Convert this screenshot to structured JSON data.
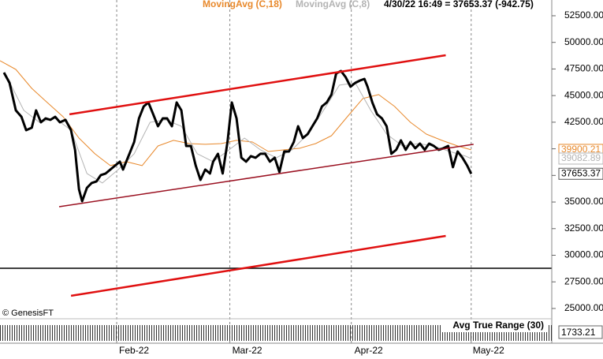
{
  "chart_data": {
    "type": "line",
    "header_quote": "4/30/22 16:49 = 37653.37 (-942.75)",
    "source": "© GenesisFT",
    "xlim": [
      0,
      139
    ],
    "xticks": [
      {
        "value": 29.4,
        "label": "Feb-22"
      },
      {
        "value": 57.9,
        "label": "Mar-22"
      },
      {
        "value": 88.5,
        "label": "Apr-22"
      },
      {
        "value": 118.7,
        "label": "May-22"
      }
    ],
    "ylim": [
      24330,
      53980
    ],
    "yticks": [
      {
        "value": 52500,
        "label": "52500.00"
      },
      {
        "value": 50000,
        "label": "50000.00"
      },
      {
        "value": 47500,
        "label": "47500.00"
      },
      {
        "value": 45000,
        "label": "45000.00"
      },
      {
        "value": 42500,
        "label": "42500.00"
      },
      {
        "value": 40000,
        "label": "40000.00"
      },
      {
        "value": 37500,
        "label": "37500.00"
      },
      {
        "value": 35000,
        "label": "35000.00"
      },
      {
        "value": 32500,
        "label": "32500.00"
      },
      {
        "value": 30000,
        "label": "30000.00"
      },
      {
        "value": 27500,
        "label": "27500.00"
      },
      {
        "value": 25000,
        "label": "25000.00"
      }
    ],
    "grid": true,
    "series": [
      {
        "color": "#000000",
        "width": 3,
        "x": [
          1.0,
          2.4,
          4.0,
          5.4,
          6.6,
          8.0,
          9.1,
          10.3,
          11.5,
          12.7,
          13.9,
          15.1,
          16.5,
          17.9,
          18.9,
          19.9,
          20.7,
          21.9,
          23.1,
          24.3,
          25.4,
          26.6,
          27.8,
          29.0,
          30.2,
          31.0,
          31.8,
          32.6,
          33.8,
          35.0,
          36.2,
          37.4,
          38.6,
          39.8,
          41.0,
          42.1,
          43.3,
          44.5,
          45.7,
          46.9,
          48.1,
          49.3,
          50.5,
          51.7,
          52.9,
          53.7,
          54.9,
          56.1,
          57.3,
          58.4,
          59.6,
          60.8,
          62.0,
          63.2,
          64.4,
          65.6,
          66.8,
          68.0,
          69.2,
          70.4,
          71.6,
          72.8,
          74.0,
          75.1,
          76.3,
          77.5,
          78.7,
          79.9,
          81.1,
          82.3,
          83.5,
          84.7,
          85.9,
          87.1,
          88.3,
          89.5,
          90.7,
          91.8,
          92.6,
          93.8,
          95.0,
          96.2,
          97.4,
          98.6,
          99.8,
          101.0,
          102.2,
          103.4,
          104.6,
          105.8,
          107.0,
          108.1,
          109.3,
          110.5,
          111.7,
          112.9,
          114.1,
          115.3,
          116.5,
          117.7,
          118.7
        ],
        "values": [
          47160,
          46200,
          43610,
          43010,
          41750,
          41980,
          43610,
          42490,
          42860,
          42720,
          43010,
          42490,
          42720,
          41750,
          39900,
          36190,
          35080,
          36340,
          36790,
          36940,
          37530,
          37680,
          38050,
          38420,
          38790,
          38050,
          38790,
          39530,
          40640,
          42860,
          43980,
          44350,
          43240,
          42120,
          42860,
          42860,
          42120,
          44350,
          43610,
          40270,
          40270,
          38420,
          37080,
          38050,
          37680,
          38790,
          39530,
          37680,
          40640,
          44350,
          42860,
          39160,
          38790,
          39310,
          39160,
          39530,
          39530,
          38790,
          39160,
          37820,
          39750,
          39750,
          40640,
          42120,
          41010,
          41380,
          42120,
          42860,
          43980,
          44350,
          45090,
          47090,
          47310,
          46720,
          45830,
          46200,
          46420,
          46570,
          45830,
          44350,
          43240,
          42860,
          42120,
          39530,
          39900,
          40790,
          39900,
          40640,
          40050,
          40490,
          39900,
          40490,
          40270,
          39900,
          40050,
          40270,
          38270,
          39750,
          39160,
          38420,
          37653.37
        ]
      },
      {
        "name": "MovingAvg (C,18)",
        "color": "#e8892c",
        "width": 1,
        "x": [
          0,
          4.0,
          8.0,
          11.9,
          15.9,
          19.9,
          23.9,
          27.8,
          31.8,
          35.8,
          39.8,
          43.7,
          47.7,
          51.7,
          55.7,
          59.6,
          63.6,
          67.6,
          71.6,
          75.5,
          79.5,
          83.5,
          87.5,
          91.4,
          95.4,
          99.4,
          103.4,
          107.4,
          111.3,
          115.3,
          118.7
        ],
        "values": [
          48280,
          47460,
          45680,
          44350,
          43010,
          41010,
          39530,
          38420,
          38790,
          38420,
          40270,
          40790,
          40490,
          40420,
          40490,
          40790,
          40640,
          39750,
          39900,
          40050,
          40490,
          41230,
          43010,
          44720,
          45090,
          43980,
          42490,
          41380,
          40790,
          40270,
          39900.21
        ]
      },
      {
        "name": "MovingAvg (C,8)",
        "color": "#b4b4b4",
        "width": 1,
        "x": [
          2.0,
          6.0,
          9.9,
          13.9,
          17.9,
          21.9,
          25.8,
          29.8,
          33.8,
          37.8,
          41.7,
          45.7,
          49.7,
          53.7,
          57.7,
          61.6,
          65.6,
          69.6,
          73.6,
          77.5,
          81.5,
          85.5,
          89.5,
          93.4,
          97.4,
          101.4,
          105.4,
          109.3,
          113.3,
          117.3,
          118.7
        ],
        "values": [
          46570,
          43610,
          42490,
          42860,
          41750,
          37680,
          36790,
          38050,
          39530,
          42490,
          42720,
          42120,
          39530,
          38790,
          39900,
          41010,
          39900,
          39160,
          39900,
          41380,
          43610,
          45980,
          46200,
          43610,
          41380,
          40270,
          40490,
          40270,
          39750,
          39310,
          39082.89
        ]
      }
    ],
    "trendlines": [
      {
        "color": "#e01010",
        "width": 2.5,
        "x": [
          17.5,
          112.3
        ],
        "values": [
          43240,
          48790
        ]
      },
      {
        "color": "#9a1020",
        "width": 1.5,
        "x": [
          14.9,
          119.3
        ],
        "values": [
          34560,
          40420
        ]
      },
      {
        "color": "#e01010",
        "width": 2.5,
        "x": [
          17.9,
          112.3
        ],
        "values": [
          26190,
          31820
        ]
      }
    ],
    "hlines": [
      {
        "value": 28780,
        "color": "#000000"
      }
    ],
    "indicator": {
      "title": "Avg True Range (30)",
      "value": 1733.21
    }
  }
}
